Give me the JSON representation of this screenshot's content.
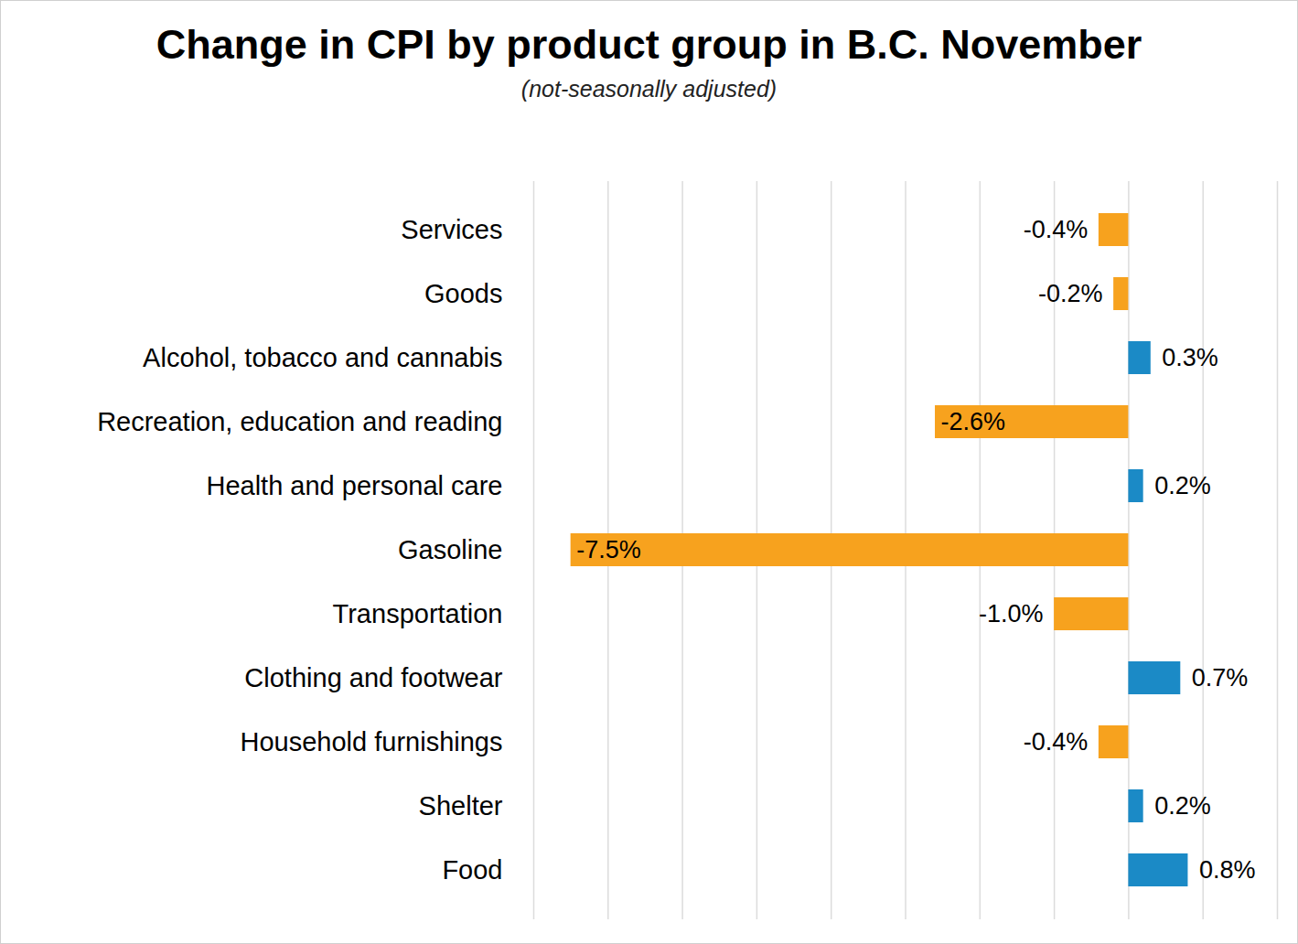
{
  "chart_data": {
    "type": "bar",
    "orientation": "horizontal",
    "title": "Change in CPI by product group in B.C. November",
    "subtitle": "(not-seasonally adjusted)",
    "categories": [
      "Services",
      "Goods",
      "Alcohol, tobacco and cannabis",
      "Recreation, education and reading",
      "Health and personal care",
      "Gasoline",
      "Transportation",
      "Clothing and footwear",
      "Household furnishings",
      "Shelter",
      "Food"
    ],
    "values": [
      -0.4,
      -0.2,
      0.3,
      -2.6,
      0.2,
      -7.5,
      -1.0,
      0.7,
      -0.4,
      0.2,
      0.8
    ],
    "value_labels": [
      "-0.4%",
      "-0.2%",
      "0.3%",
      "-2.6%",
      "0.2%",
      "-7.5%",
      "-1.0%",
      "0.7%",
      "-0.4%",
      "0.2%",
      "0.8%"
    ],
    "colors": [
      "#f7a21e",
      "#f7a21e",
      "#1b8ac6",
      "#f7a21e",
      "#1b8ac6",
      "#f7a21e",
      "#f7a21e",
      "#1b8ac6",
      "#f7a21e",
      "#1b8ac6",
      "#1b8ac6"
    ],
    "xlim": [
      -8,
      2
    ],
    "xticks": [
      -8,
      -7,
      -6,
      -5,
      -4,
      -3,
      -2,
      -1,
      0,
      1,
      2
    ],
    "grid": true,
    "data_labels": true,
    "tick_labels": "y"
  }
}
